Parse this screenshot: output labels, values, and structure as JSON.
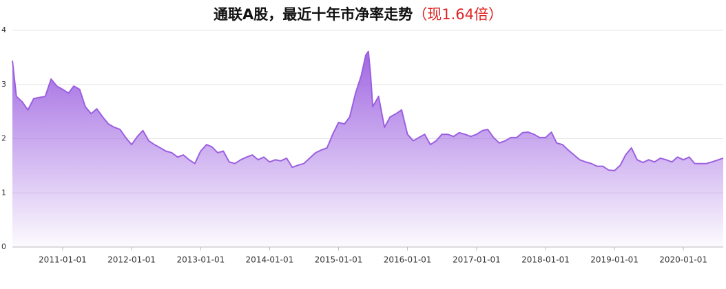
{
  "chart_data": {
    "type": "area",
    "title": "通联A股，最近十年市净率走势",
    "title_note": "（现1.64倍）",
    "color": "#9b5fe0",
    "xlim": [
      "2010-04-10",
      "2020-07-30"
    ],
    "xticks": [
      "2011-01-01",
      "2012-01-01",
      "2013-01-01",
      "2014-01-01",
      "2015-01-01",
      "2016-01-01",
      "2017-01-01",
      "2018-01-01",
      "2019-01-01",
      "2020-01-01"
    ],
    "ylim": [
      0,
      4
    ],
    "yticks": [
      0,
      1,
      2,
      3,
      4
    ],
    "grid": true,
    "x": [
      "2010-04-10",
      "2010-05-01",
      "2010-06-01",
      "2010-07-01",
      "2010-08-01",
      "2010-09-01",
      "2010-10-01",
      "2010-11-01",
      "2010-12-01",
      "2011-01-01",
      "2011-02-01",
      "2011-03-01",
      "2011-04-01",
      "2011-05-01",
      "2011-06-01",
      "2011-07-01",
      "2011-08-01",
      "2011-09-01",
      "2011-10-01",
      "2011-11-01",
      "2011-12-01",
      "2012-01-01",
      "2012-02-01",
      "2012-03-01",
      "2012-04-01",
      "2012-05-01",
      "2012-06-01",
      "2012-07-01",
      "2012-08-01",
      "2012-09-01",
      "2012-10-01",
      "2012-11-01",
      "2012-12-01",
      "2013-01-01",
      "2013-02-01",
      "2013-03-01",
      "2013-04-01",
      "2013-05-01",
      "2013-06-01",
      "2013-07-01",
      "2013-08-01",
      "2013-09-01",
      "2013-10-01",
      "2013-11-01",
      "2013-12-01",
      "2014-01-01",
      "2014-02-01",
      "2014-03-01",
      "2014-04-01",
      "2014-05-01",
      "2014-06-01",
      "2014-07-01",
      "2014-08-01",
      "2014-09-01",
      "2014-10-01",
      "2014-11-01",
      "2014-12-01",
      "2015-01-01",
      "2015-02-01",
      "2015-03-01",
      "2015-04-01",
      "2015-05-01",
      "2015-05-25",
      "2015-06-08",
      "2015-06-20",
      "2015-07-01",
      "2015-08-01",
      "2015-09-01",
      "2015-10-01",
      "2015-11-01",
      "2015-12-01",
      "2016-01-01",
      "2016-02-01",
      "2016-03-01",
      "2016-04-01",
      "2016-05-01",
      "2016-06-01",
      "2016-07-01",
      "2016-08-01",
      "2016-09-01",
      "2016-10-01",
      "2016-11-01",
      "2016-12-01",
      "2017-01-01",
      "2017-02-01",
      "2017-03-01",
      "2017-04-01",
      "2017-05-01",
      "2017-06-01",
      "2017-07-01",
      "2017-08-01",
      "2017-09-01",
      "2017-10-01",
      "2017-11-01",
      "2017-12-01",
      "2018-01-01",
      "2018-02-01",
      "2018-03-01",
      "2018-04-01",
      "2018-05-01",
      "2018-06-01",
      "2018-07-01",
      "2018-08-01",
      "2018-09-01",
      "2018-10-01",
      "2018-11-01",
      "2018-12-01",
      "2019-01-01",
      "2019-02-01",
      "2019-03-01",
      "2019-04-01",
      "2019-05-01",
      "2019-06-01",
      "2019-07-01",
      "2019-08-01",
      "2019-09-01",
      "2019-10-01",
      "2019-11-01",
      "2019-12-01",
      "2020-01-01",
      "2020-02-01",
      "2020-03-01",
      "2020-04-01",
      "2020-05-01",
      "2020-06-01",
      "2020-07-30"
    ],
    "values": [
      3.44,
      2.78,
      2.68,
      2.53,
      2.74,
      2.76,
      2.78,
      3.1,
      2.97,
      2.91,
      2.84,
      2.97,
      2.91,
      2.59,
      2.46,
      2.55,
      2.4,
      2.27,
      2.21,
      2.17,
      2.02,
      1.89,
      2.04,
      2.15,
      1.96,
      1.89,
      1.83,
      1.77,
      1.74,
      1.66,
      1.7,
      1.61,
      1.54,
      1.77,
      1.89,
      1.85,
      1.74,
      1.77,
      1.57,
      1.54,
      1.61,
      1.66,
      1.7,
      1.61,
      1.66,
      1.57,
      1.61,
      1.59,
      1.64,
      1.47,
      1.51,
      1.54,
      1.64,
      1.74,
      1.79,
      1.83,
      2.08,
      2.3,
      2.27,
      2.4,
      2.84,
      3.16,
      3.54,
      3.61,
      3.16,
      2.59,
      2.78,
      2.21,
      2.4,
      2.46,
      2.53,
      2.08,
      1.96,
      2.02,
      2.08,
      1.89,
      1.96,
      2.08,
      2.08,
      2.04,
      2.11,
      2.08,
      2.04,
      2.08,
      2.15,
      2.17,
      2.02,
      1.92,
      1.96,
      2.02,
      2.02,
      2.11,
      2.12,
      2.08,
      2.02,
      2.02,
      2.12,
      1.92,
      1.89,
      1.79,
      1.7,
      1.61,
      1.57,
      1.54,
      1.49,
      1.49,
      1.42,
      1.41,
      1.51,
      1.7,
      1.83,
      1.61,
      1.56,
      1.61,
      1.57,
      1.64,
      1.61,
      1.57,
      1.66,
      1.61,
      1.66,
      1.54,
      1.54,
      1.54,
      1.57,
      1.64
    ]
  }
}
